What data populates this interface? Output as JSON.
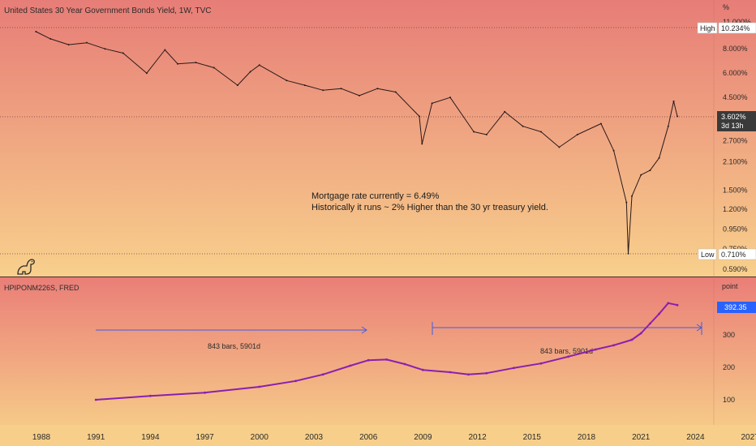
{
  "colors": {
    "top_bg_top": "#e77d77",
    "top_bg_bottom": "#f8d08c",
    "bottom_bg_top": "#ea7e78",
    "bottom_bg_bottom": "#f6c988",
    "price_line": "#2a1a1a",
    "hpi_line": "#8a1fb0",
    "measure_line": "#3f5fe0",
    "axis_text": "#2b2b2b",
    "highlight_label": "#2962ff"
  },
  "top_pane": {
    "title": "United States 30 Year Government Bonds Yield, 1W, TVC",
    "unit_label": "%",
    "y_ticks": [
      "11.000%",
      "8.000%",
      "6.000%",
      "4.500%",
      "2.700%",
      "2.100%",
      "1.500%",
      "1.200%",
      "0.950%",
      "0.750%",
      "0.590%"
    ],
    "high_tag": "High",
    "high_value": "10.234%",
    "current_value": "3.602%",
    "current_countdown": "3d 13h",
    "low_tag": "Low",
    "low_value": "0.710%",
    "annotation_line1": "Mortgage rate currently = 6.49%",
    "annotation_line2": "Historically it runs ~ 2% Higher than the 30 yr treasury yield."
  },
  "bottom_pane": {
    "title": "HPIPONM226S, FRED",
    "unit_label": "point",
    "y_ticks": [
      "300",
      "200",
      "100"
    ],
    "current_value": "392.35",
    "measure1_label": "843 bars, 5901d",
    "measure2_label": "843 bars, 5901d"
  },
  "x_axis": {
    "ticks": [
      "1988",
      "1991",
      "1994",
      "1997",
      "2000",
      "2003",
      "2006",
      "2009",
      "2012",
      "2015",
      "2018",
      "2021",
      "2024",
      "2027"
    ]
  },
  "chart_data": [
    {
      "type": "line",
      "title": "United States 30 Year Government Bonds Yield, 1W, TVC",
      "y_scale": "log",
      "ylim": [
        0.59,
        11.0
      ],
      "x": [
        1987.7,
        1988.5,
        1989.5,
        1990.5,
        1991.5,
        1992.5,
        1993.8,
        1994.8,
        1995.5,
        1996.5,
        1997.5,
        1998.8,
        1999.5,
        2000.0,
        2001.5,
        2002.5,
        2003.5,
        2004.5,
        2005.5,
        2006.5,
        2007.5,
        2008.8,
        2008.95,
        2009.5,
        2010.5,
        2011.8,
        2012.5,
        2013.5,
        2014.5,
        2015.5,
        2016.5,
        2017.5,
        2018.8,
        2019.5,
        2020.2,
        2020.3,
        2020.5,
        2021.0,
        2021.5,
        2022.0,
        2022.5,
        2022.8,
        2023.0
      ],
      "y": [
        9.8,
        9.0,
        8.4,
        8.6,
        8.0,
        7.6,
        6.0,
        7.9,
        6.7,
        6.8,
        6.4,
        5.2,
        6.1,
        6.6,
        5.5,
        5.2,
        4.9,
        5.0,
        4.6,
        5.0,
        4.8,
        3.6,
        2.6,
        4.2,
        4.5,
        3.0,
        2.9,
        3.8,
        3.2,
        3.0,
        2.5,
        2.9,
        3.3,
        2.4,
        1.3,
        0.71,
        1.4,
        1.8,
        1.9,
        2.2,
        3.2,
        4.3,
        3.6
      ]
    },
    {
      "type": "line",
      "title": "HPIPONM226S, FRED",
      "ylim": [
        0,
        420
      ],
      "x": [
        1991.0,
        1994.0,
        1997.0,
        2000.0,
        2002.0,
        2003.5,
        2005.0,
        2006.0,
        2007.0,
        2008.0,
        2009.0,
        2010.5,
        2011.5,
        2012.5,
        2014.0,
        2015.5,
        2017.0,
        2018.5,
        2019.5,
        2020.5,
        2021.0,
        2021.5,
        2022.0,
        2022.5,
        2023.0
      ],
      "y": [
        100,
        112,
        122,
        140,
        158,
        178,
        205,
        222,
        224,
        210,
        192,
        185,
        178,
        182,
        198,
        212,
        233,
        255,
        268,
        285,
        305,
        335,
        365,
        398,
        392
      ]
    }
  ]
}
